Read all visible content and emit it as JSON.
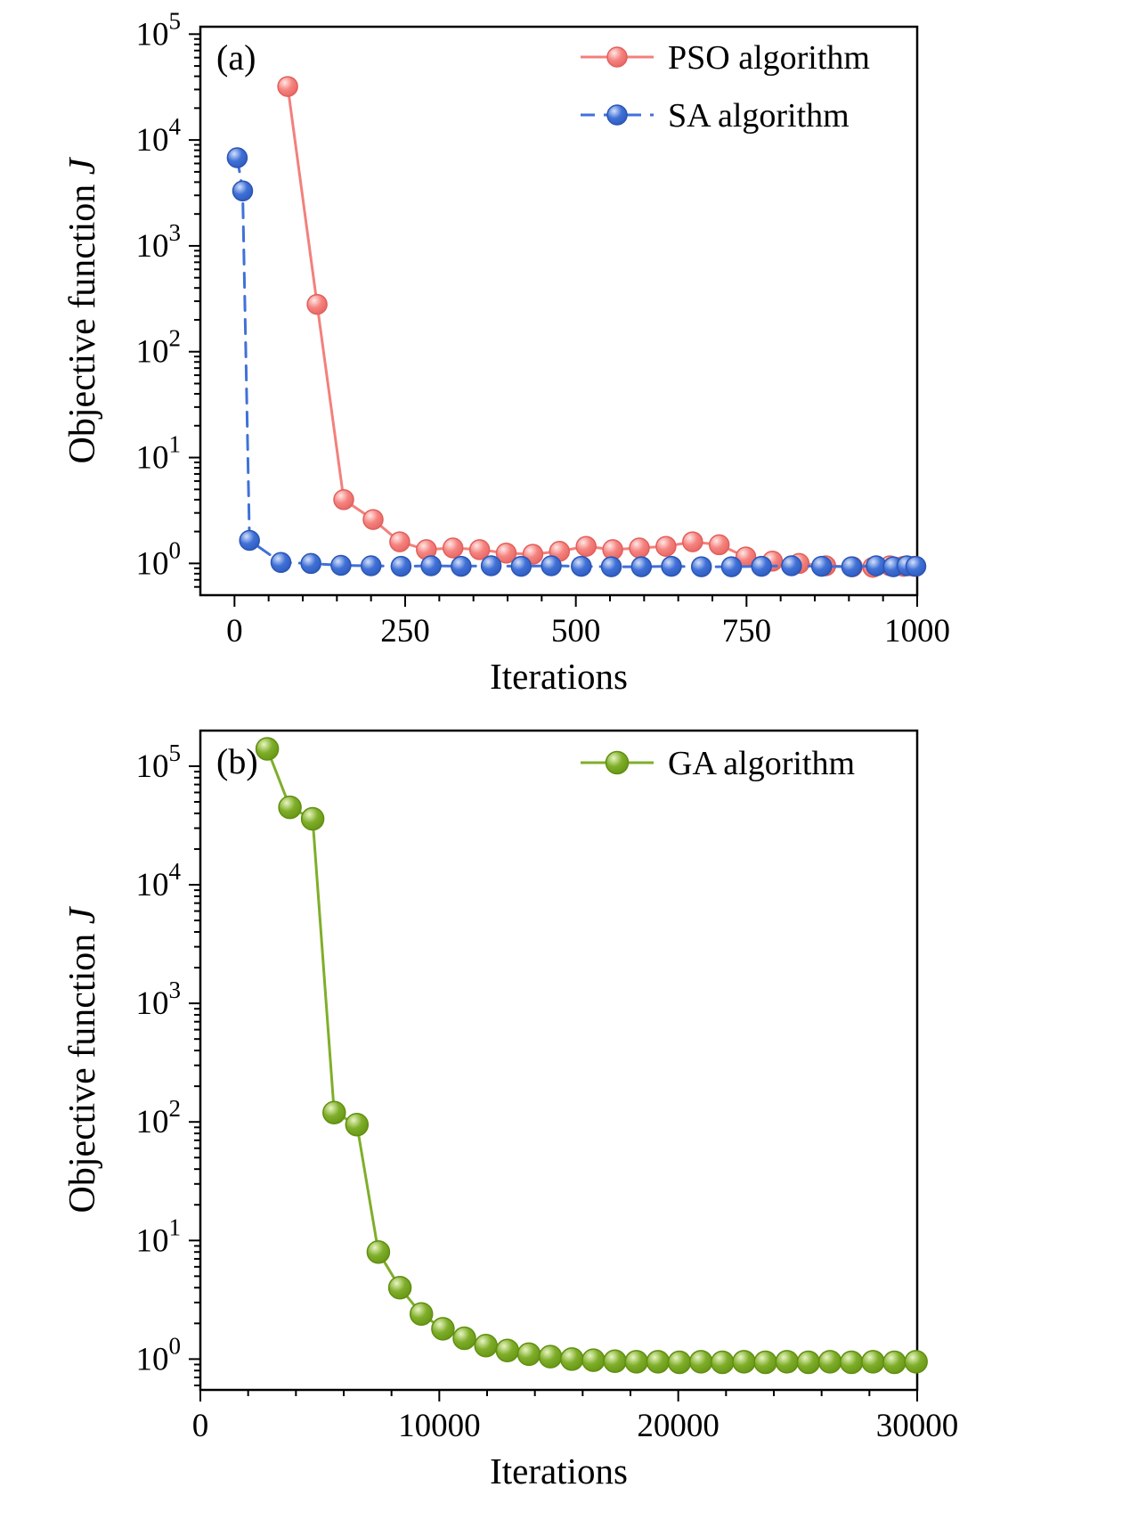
{
  "figure": {
    "background": "#ffffff"
  },
  "chart_data": [
    {
      "type": "line",
      "panel_label": "(a)",
      "xlabel": "Iterations",
      "ylabel": "Objective function",
      "ylabel_var": "J",
      "x_ticks": [
        0,
        250,
        500,
        750,
        1000
      ],
      "x_minor_step": 50,
      "xlim": [
        -50,
        1000
      ],
      "ylog": true,
      "y_tick_exponents": [
        0,
        1,
        2,
        3,
        4,
        5
      ],
      "ylim_exponents": [
        -0.3,
        5.07
      ],
      "grid": false,
      "legend_position": "top-right",
      "series": [
        {
          "name": "PSO algorithm",
          "color": "#f5837f",
          "line_color": "#f3807c",
          "edge_color": "#e25f5c",
          "highlight": "#ffe7e5",
          "dash": "",
          "x": [
            78,
            121,
            160,
            203,
            242,
            281,
            320,
            359,
            398,
            437,
            476,
            515,
            554,
            593,
            632,
            671,
            710,
            749,
            788,
            827,
            866,
            905,
            935,
            960,
            980,
            995
          ],
          "y": [
            32000,
            280,
            4.0,
            2.6,
            1.6,
            1.35,
            1.4,
            1.35,
            1.25,
            1.22,
            1.3,
            1.45,
            1.35,
            1.4,
            1.45,
            1.6,
            1.5,
            1.15,
            1.05,
            1.0,
            0.95,
            0.93,
            0.92,
            0.95,
            0.94,
            0.94
          ]
        },
        {
          "name": "SA algorithm",
          "color": "#4071d8",
          "line_color": "#4071d8",
          "edge_color": "#2b55b5",
          "highlight": "#d4e0f9",
          "dash": "16 10",
          "x": [
            4,
            12,
            22,
            68,
            112,
            156,
            200,
            244,
            288,
            332,
            376,
            420,
            464,
            508,
            552,
            596,
            640,
            684,
            728,
            772,
            816,
            860,
            904,
            940,
            965,
            985,
            998
          ],
          "y": [
            6800,
            3300,
            1.65,
            1.02,
            1.0,
            0.96,
            0.95,
            0.94,
            0.95,
            0.94,
            0.95,
            0.94,
            0.95,
            0.94,
            0.93,
            0.93,
            0.94,
            0.93,
            0.93,
            0.94,
            0.95,
            0.94,
            0.93,
            0.95,
            0.93,
            0.95,
            0.94
          ]
        }
      ]
    },
    {
      "type": "line",
      "panel_label": "(b)",
      "xlabel": "Iterations",
      "ylabel": "Objective function",
      "ylabel_var": "J",
      "x_ticks": [
        0,
        10000,
        20000,
        30000
      ],
      "x_minor_step": 2000,
      "xlim": [
        0,
        30000
      ],
      "ylog": true,
      "y_tick_exponents": [
        0,
        1,
        2,
        3,
        4,
        5
      ],
      "ylim_exponents": [
        -0.26,
        5.3
      ],
      "grid": false,
      "legend_position": "top-right",
      "series": [
        {
          "name": "GA algorithm",
          "color": "#7fae2a",
          "line_color": "#7fae2a",
          "edge_color": "#618f10",
          "highlight": "#e8f5c2",
          "dash": "",
          "x": [
            2800,
            3750,
            4700,
            5600,
            6550,
            7450,
            8350,
            9250,
            10150,
            11050,
            11950,
            12850,
            13750,
            14650,
            15550,
            16450,
            17350,
            18250,
            19150,
            20050,
            20950,
            21850,
            22750,
            23650,
            24550,
            25450,
            26350,
            27250,
            28150,
            29050,
            29950
          ],
          "y": [
            140000,
            45000,
            36000,
            120,
            95,
            8,
            4,
            2.4,
            1.8,
            1.5,
            1.3,
            1.18,
            1.1,
            1.05,
            1.0,
            0.98,
            0.96,
            0.95,
            0.95,
            0.94,
            0.95,
            0.94,
            0.95,
            0.94,
            0.95,
            0.94,
            0.95,
            0.94,
            0.95,
            0.94,
            0.95
          ]
        }
      ]
    }
  ]
}
